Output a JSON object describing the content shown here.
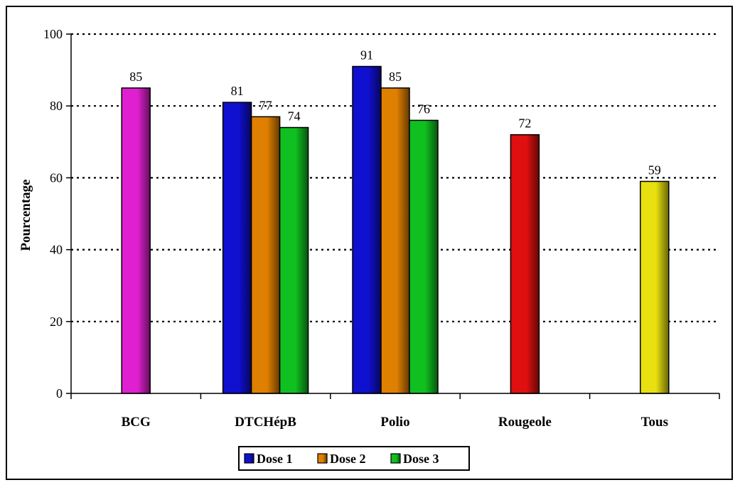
{
  "chart_data": {
    "type": "bar",
    "ylabel": "Pourcentage",
    "ylim": [
      0,
      100
    ],
    "yticks": [
      0,
      20,
      40,
      60,
      80,
      100
    ],
    "grid": "horizontal dotted",
    "legend_position": "bottom",
    "categories": [
      "BCG",
      "DTCHépB",
      "Polio",
      "Rougeole",
      "Tous"
    ],
    "legend": [
      {
        "name": "Dose 1",
        "color": "#1010d0"
      },
      {
        "name": "Dose 2",
        "color": "#e08000"
      },
      {
        "name": "Dose 3",
        "color": "#10c020"
      }
    ],
    "bars": [
      {
        "category": "BCG",
        "series": null,
        "value": 85,
        "color": "#e020d0"
      },
      {
        "category": "DTCHépB",
        "series": "Dose 1",
        "value": 81,
        "color": "#1010d0"
      },
      {
        "category": "DTCHépB",
        "series": "Dose 2",
        "value": 77,
        "color": "#e08000"
      },
      {
        "category": "DTCHépB",
        "series": "Dose 3",
        "value": 74,
        "color": "#10c020"
      },
      {
        "category": "Polio",
        "series": "Dose 1",
        "value": 91,
        "color": "#1010d0"
      },
      {
        "category": "Polio",
        "series": "Dose 2",
        "value": 85,
        "color": "#e08000"
      },
      {
        "category": "Polio",
        "series": "Dose 3",
        "value": 76,
        "color": "#10c020"
      },
      {
        "category": "Rougeole",
        "series": null,
        "value": 72,
        "color": "#e01010"
      },
      {
        "category": "Tous",
        "series": null,
        "value": 59,
        "color": "#e8e010"
      }
    ]
  }
}
